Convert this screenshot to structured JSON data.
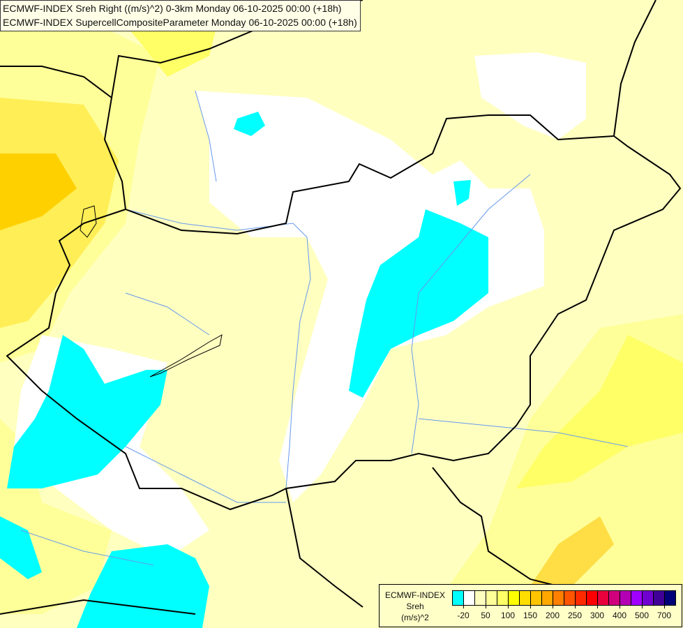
{
  "title": {
    "line1": "ECMWF-INDEX Sreh Right ((m/s)^2) 0-3km Monday 06-10-2025 00:00 (+18h)",
    "line2": "ECMWF-INDEX SupercellCompositeParameter Monday 06-10-2025 00:00 (+18h)"
  },
  "legend": {
    "line1": "ECMWF-INDEX",
    "line2": "Sreh",
    "line3": "(m/s)^2",
    "colors": [
      "#00ffff",
      "#ffffff",
      "#ffffc0",
      "#ffff99",
      "#ffff66",
      "#ffff00",
      "#ffdd00",
      "#ffc400",
      "#ffa800",
      "#ff8000",
      "#ff5500",
      "#ff2a00",
      "#ff0000",
      "#e8003c",
      "#d0007c",
      "#b400b4",
      "#a000ff",
      "#7000d0",
      "#400098",
      "#000078"
    ],
    "labels": [
      "-20",
      "50",
      "100",
      "150",
      "200",
      "250",
      "300",
      "400",
      "500",
      "700"
    ]
  },
  "map_colors": {
    "cyan": "#00ffff",
    "white": "#ffffff",
    "pale": "#ffffc0",
    "light_yellow": "#ffff99",
    "yellow": "#ffff66",
    "gold": "#ffdd00",
    "orange": "#ffc400",
    "border": "#000000",
    "river": "#6699ee"
  }
}
